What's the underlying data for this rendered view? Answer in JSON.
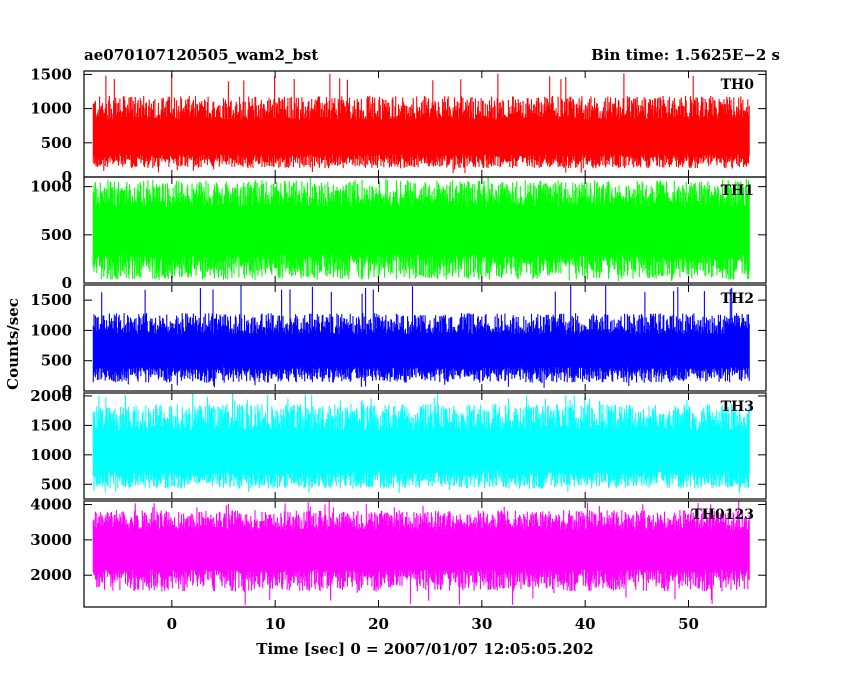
{
  "chart_data": {
    "type": "line",
    "title_left": "ae070107120505_wam2_bst",
    "title_right": "Bin time: 1.5625E−2 s",
    "xlabel": "Time [sec] 0 = 2007/01/07 12:05:05.202",
    "ylabel": "Counts/sec",
    "xlim": [
      -8.5,
      57.5
    ],
    "data_x_range": [
      -7.6,
      55.9
    ],
    "x_ticks": [
      0,
      10,
      20,
      30,
      40,
      50
    ],
    "x_tick_labels": [
      "0",
      "10",
      "20",
      "30",
      "40",
      "50"
    ],
    "grid": false,
    "legend": "none",
    "series": [
      {
        "name": "TH0",
        "color": "#ff0000",
        "ylim": [
          0,
          1550
        ],
        "y_ticks": [
          0,
          500,
          1000,
          1500
        ],
        "y_tick_labels": [
          "0",
          "500",
          "1000",
          "1500"
        ],
        "mean": 520,
        "range_low": 50,
        "range_high": 1550,
        "typical_peak": 1100,
        "typical_trough": 180
      },
      {
        "name": "TH1",
        "color": "#00ff00",
        "ylim": [
          0,
          1100
        ],
        "y_ticks": [
          0,
          500,
          1000
        ],
        "y_tick_labels": [
          "0",
          "500",
          "1000"
        ],
        "mean": 540,
        "range_low": 20,
        "range_high": 1100,
        "typical_peak": 1000,
        "typical_trough": 100
      },
      {
        "name": "TH2",
        "color": "#0000ff",
        "ylim": [
          0,
          1750
        ],
        "y_ticks": [
          0,
          500,
          1000,
          1500
        ],
        "y_tick_labels": [
          "0",
          "500",
          "1000",
          "1500"
        ],
        "mean": 620,
        "range_low": 50,
        "range_high": 1750,
        "typical_peak": 1200,
        "typical_trough": 200
      },
      {
        "name": "TH3",
        "color": "#00ffff",
        "ylim": [
          250,
          2050
        ],
        "y_ticks": [
          500,
          1000,
          1500,
          2000
        ],
        "y_tick_labels": [
          "500",
          "1000",
          "1500",
          "2000"
        ],
        "mean": 1000,
        "range_low": 350,
        "range_high": 2050,
        "typical_peak": 1750,
        "typical_trough": 500
      },
      {
        "name": "TH0123",
        "color": "#ff00ff",
        "ylim": [
          1100,
          4100
        ],
        "y_ticks": [
          2000,
          3000,
          4000
        ],
        "y_tick_labels": [
          "2000",
          "3000",
          "4000"
        ],
        "mean": 2750,
        "range_low": 1150,
        "range_high": 4100,
        "typical_peak": 3700,
        "typical_trough": 1700
      }
    ]
  }
}
